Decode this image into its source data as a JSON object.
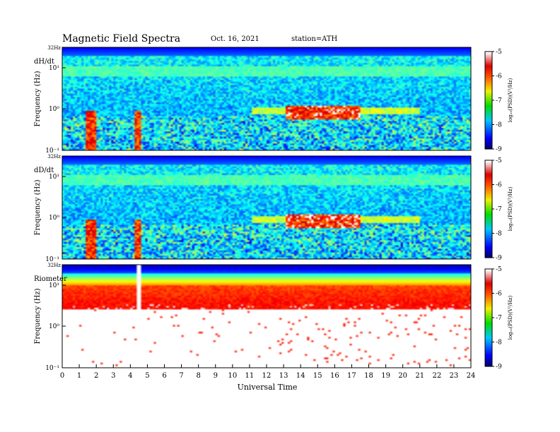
{
  "header": {
    "title": "Magnetic  Field  Spectra",
    "date": "Oct. 16, 2021",
    "station": "station=ATH"
  },
  "chart_data": {
    "type": "heatmap",
    "xlabel": "Universal Time",
    "x_ticks": [
      "0",
      "1",
      "2",
      "3",
      "4",
      "5",
      "6",
      "7",
      "8",
      "9",
      "10",
      "11",
      "12",
      "13",
      "14",
      "15",
      "16",
      "17",
      "18",
      "19",
      "20",
      "21",
      "22",
      "23",
      "24"
    ],
    "xlim": [
      0,
      24
    ],
    "panels": [
      {
        "label": "dH/dt",
        "ylabel": "Frequency  (Hz)",
        "top_tick": "32Hz",
        "y_ticks": [
          "10¹",
          "10⁰",
          "10⁻¹"
        ],
        "colorbar": {
          "ticks": [
            "-5",
            "-6",
            "-7",
            "-8",
            "-9"
          ],
          "label": "log₁₀(PSD)(V²/Hz)",
          "range": [
            -9,
            -5
          ]
        },
        "kind": "magnetic"
      },
      {
        "label": "dD/dt",
        "ylabel": "Frequency  (Hz)",
        "top_tick": "32Hz",
        "y_ticks": [
          "10¹",
          "10⁰",
          "10⁻¹"
        ],
        "colorbar": {
          "ticks": [
            "-5",
            "-6",
            "-7",
            "-8",
            "-9"
          ],
          "label": "log₁₀(PSD)(V²/Hz)",
          "range": [
            -9,
            -5
          ]
        },
        "kind": "magnetic"
      },
      {
        "label": "Riometer",
        "ylabel": "Frequency  (Hz)",
        "top_tick": "32Hz",
        "y_ticks": [
          "10¹",
          "10⁰",
          "10⁻¹"
        ],
        "colorbar": {
          "ticks": [
            "-5",
            "-6",
            "-7",
            "-8",
            "-9"
          ],
          "label": "log₁₀(PSD)(V²/Hz)",
          "range": [
            -9,
            -5
          ]
        },
        "kind": "riometer",
        "data_gap_hours": [
          4.35,
          4.6
        ]
      }
    ]
  }
}
